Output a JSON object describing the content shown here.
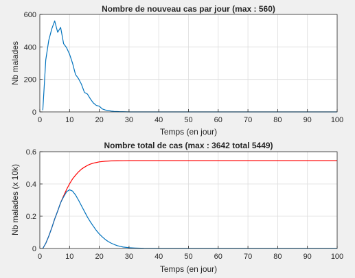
{
  "chart_data": [
    {
      "type": "line",
      "title": "Nombre de nouveau cas par jour (max : 560)",
      "xlabel": "Temps (en jour)",
      "ylabel": "Nb malades",
      "xlim": [
        0,
        100
      ],
      "ylim": [
        0,
        600
      ],
      "xticks": [
        0,
        10,
        20,
        30,
        40,
        50,
        60,
        70,
        80,
        90,
        100
      ],
      "yticks": [
        0,
        200,
        400,
        600
      ],
      "grid": true,
      "series": [
        {
          "color": "#0072bd",
          "x": [
            1,
            2,
            3,
            4,
            5,
            6,
            7,
            8,
            9,
            10,
            11,
            12,
            13,
            14,
            15,
            16,
            17,
            18,
            19,
            20,
            21,
            22,
            23,
            24,
            25,
            26,
            27,
            28,
            30,
            35,
            40,
            50,
            60,
            70,
            80,
            90,
            100
          ],
          "y": [
            10,
            320,
            440,
            510,
            560,
            490,
            520,
            420,
            395,
            355,
            300,
            230,
            205,
            170,
            120,
            110,
            80,
            55,
            40,
            35,
            18,
            12,
            8,
            5,
            3,
            2,
            1,
            1,
            0,
            0,
            0,
            0,
            0,
            0,
            0,
            0,
            0
          ]
        }
      ]
    },
    {
      "type": "line",
      "title": "Nombre total de cas (max : 3642 total 5449)",
      "xlabel": "Temps (en jour)",
      "ylabel": "Nb malades (x 10k)",
      "xlim": [
        0,
        100
      ],
      "ylim": [
        0,
        0.6
      ],
      "xticks": [
        0,
        10,
        20,
        30,
        40,
        50,
        60,
        70,
        80,
        90,
        100
      ],
      "yticks": [
        0,
        0.2,
        0.4,
        0.6
      ],
      "grid": true,
      "series": [
        {
          "color": "#ff0000",
          "x": [
            1,
            2,
            3,
            4,
            5,
            6,
            7,
            8,
            9,
            10,
            11,
            12,
            13,
            14,
            15,
            16,
            17,
            18,
            19,
            20,
            22,
            24,
            26,
            28,
            30,
            35,
            40,
            50,
            60,
            70,
            80,
            90,
            100
          ],
          "y": [
            0.0,
            0.032,
            0.076,
            0.127,
            0.183,
            0.232,
            0.284,
            0.326,
            0.366,
            0.401,
            0.431,
            0.454,
            0.475,
            0.492,
            0.504,
            0.515,
            0.523,
            0.529,
            0.533,
            0.537,
            0.541,
            0.543,
            0.544,
            0.5445,
            0.5449,
            0.5449,
            0.5449,
            0.5449,
            0.5449,
            0.5449,
            0.5449,
            0.5449,
            0.5449
          ]
        },
        {
          "color": "#0072bd",
          "x": [
            1,
            2,
            3,
            4,
            5,
            6,
            7,
            8,
            9,
            10,
            11,
            12,
            13,
            14,
            15,
            16,
            17,
            18,
            19,
            20,
            21,
            22,
            23,
            24,
            25,
            26,
            27,
            28,
            30,
            32,
            35,
            40,
            50,
            60,
            70,
            80,
            90,
            100
          ],
          "y": [
            0.0,
            0.032,
            0.076,
            0.127,
            0.183,
            0.232,
            0.284,
            0.32,
            0.352,
            0.364,
            0.356,
            0.332,
            0.3,
            0.265,
            0.23,
            0.195,
            0.165,
            0.138,
            0.112,
            0.09,
            0.072,
            0.056,
            0.043,
            0.033,
            0.025,
            0.018,
            0.013,
            0.009,
            0.005,
            0.003,
            0.001,
            0.0,
            0.0,
            0.0,
            0.0,
            0.0,
            0.0,
            0.0
          ]
        }
      ]
    }
  ]
}
